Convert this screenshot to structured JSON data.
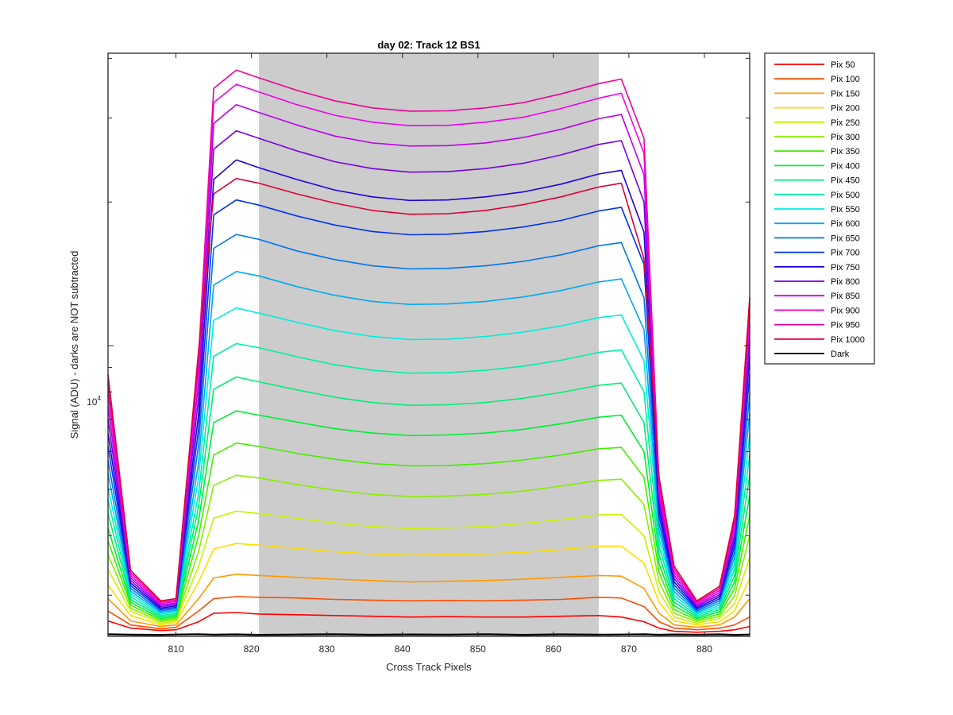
{
  "chart_data": {
    "type": "line",
    "title": "day 02: Track 12  BS1",
    "xlabel": "Cross Track Pixels",
    "ylabel": "Signal (ADU) - darks are NOT subtracted",
    "yscale": "log",
    "xlim": [
      801,
      886
    ],
    "ylim": [
      2460,
      41000
    ],
    "x_ticks": [
      810,
      820,
      830,
      840,
      850,
      860,
      870,
      880
    ],
    "x_tick_labels": [
      "810",
      "820",
      "830",
      "840",
      "850",
      "860",
      "870",
      "880"
    ],
    "y_tick_label": {
      "base": "10",
      "exponent": "4",
      "value": 10000
    },
    "shaded_region": {
      "x_from": 821,
      "x_to": 866,
      "color": "#cccccc"
    },
    "legend_position": "outside-top-right",
    "grid": false,
    "profile_x": [
      801,
      804,
      808,
      810,
      813,
      815,
      818,
      821,
      826,
      831,
      836,
      841,
      846,
      851,
      856,
      861,
      866,
      869,
      872,
      874,
      876,
      879,
      882,
      884,
      886
    ],
    "series": [
      {
        "name": "Pix 50",
        "color": "#ff0000",
        "values": [
          2650,
          2560,
          2530,
          2540,
          2640,
          2750,
          2760,
          2740,
          2730,
          2720,
          2710,
          2700,
          2705,
          2700,
          2700,
          2710,
          2720,
          2700,
          2640,
          2560,
          2520,
          2510,
          2520,
          2540,
          2580
        ]
      },
      {
        "name": "Pix 100",
        "color": "#ff4d00",
        "values": [
          2780,
          2600,
          2550,
          2570,
          2780,
          2950,
          2980,
          2970,
          2960,
          2940,
          2930,
          2920,
          2925,
          2920,
          2930,
          2940,
          2970,
          2960,
          2840,
          2640,
          2560,
          2540,
          2560,
          2600,
          2700
        ]
      },
      {
        "name": "Pix 150",
        "color": "#ff9900",
        "values": [
          2950,
          2650,
          2580,
          2600,
          2950,
          3260,
          3320,
          3300,
          3270,
          3240,
          3220,
          3200,
          3210,
          3220,
          3240,
          3270,
          3300,
          3290,
          3100,
          2750,
          2600,
          2570,
          2600,
          2700,
          2950
        ]
      },
      {
        "name": "Pix 200",
        "color": "#ffdd00",
        "values": [
          3150,
          2720,
          2600,
          2630,
          3200,
          3750,
          3850,
          3820,
          3760,
          3700,
          3660,
          3640,
          3650,
          3660,
          3690,
          3740,
          3800,
          3800,
          3500,
          2900,
          2650,
          2600,
          2640,
          2780,
          3250
        ]
      },
      {
        "name": "Pix 250",
        "color": "#ccf000",
        "values": [
          3400,
          2780,
          2620,
          2650,
          3450,
          4350,
          4500,
          4450,
          4350,
          4250,
          4180,
          4140,
          4150,
          4180,
          4240,
          4320,
          4420,
          4430,
          4000,
          3050,
          2700,
          2620,
          2680,
          2880,
          3600
        ]
      },
      {
        "name": "Pix 300",
        "color": "#88ee00",
        "values": [
          3650,
          2820,
          2640,
          2670,
          3700,
          5100,
          5350,
          5280,
          5120,
          4980,
          4880,
          4830,
          4840,
          4880,
          4960,
          5080,
          5220,
          5250,
          4650,
          3200,
          2750,
          2640,
          2710,
          2990,
          4000
        ]
      },
      {
        "name": "Pix 350",
        "color": "#44ee00",
        "values": [
          3900,
          2860,
          2660,
          2690,
          4000,
          5900,
          6250,
          6150,
          5950,
          5780,
          5660,
          5600,
          5610,
          5660,
          5760,
          5900,
          6080,
          6120,
          5300,
          3350,
          2800,
          2660,
          2740,
          3100,
          4400
        ]
      },
      {
        "name": "Pix 400",
        "color": "#00ee33",
        "values": [
          4150,
          2900,
          2680,
          2710,
          4300,
          6900,
          7300,
          7150,
          6920,
          6700,
          6560,
          6480,
          6500,
          6560,
          6680,
          6860,
          7080,
          7150,
          6000,
          3500,
          2850,
          2680,
          2770,
          3200,
          4850
        ]
      },
      {
        "name": "Pix 450",
        "color": "#00ee77",
        "values": [
          4450,
          2940,
          2700,
          2730,
          4600,
          8100,
          8600,
          8400,
          8080,
          7800,
          7600,
          7500,
          7520,
          7600,
          7760,
          7980,
          8260,
          8350,
          6900,
          3650,
          2900,
          2700,
          2800,
          3300,
          5350
        ]
      },
      {
        "name": "Pix 500",
        "color": "#00eeaa",
        "values": [
          4750,
          2980,
          2720,
          2750,
          4900,
          9500,
          10100,
          9900,
          9480,
          9120,
          8880,
          8760,
          8780,
          8880,
          9060,
          9320,
          9680,
          9800,
          8000,
          3800,
          2950,
          2720,
          2830,
          3400,
          5900
        ]
      },
      {
        "name": "Pix 550",
        "color": "#00eedd",
        "values": [
          5050,
          3020,
          2740,
          2770,
          5300,
          11300,
          12000,
          11700,
          11200,
          10750,
          10450,
          10300,
          10320,
          10450,
          10680,
          11000,
          11450,
          11600,
          9300,
          3950,
          3000,
          2740,
          2860,
          3500,
          6500
        ]
      },
      {
        "name": "Pix 600",
        "color": "#00aaee",
        "values": [
          5400,
          3060,
          2760,
          2790,
          5700,
          13400,
          14300,
          14000,
          13300,
          12750,
          12380,
          12200,
          12230,
          12380,
          12650,
          13050,
          13600,
          13800,
          10800,
          4100,
          3050,
          2760,
          2890,
          3600,
          7200
        ]
      },
      {
        "name": "Pix 650",
        "color": "#0077ee",
        "values": [
          5750,
          3100,
          2780,
          2810,
          6200,
          16000,
          17100,
          16700,
          15800,
          15150,
          14700,
          14480,
          14520,
          14700,
          15020,
          15500,
          16200,
          16450,
          12600,
          4250,
          3100,
          2780,
          2920,
          3700,
          7900
        ]
      },
      {
        "name": "Pix 700",
        "color": "#0033ee",
        "values": [
          6150,
          3140,
          2800,
          2830,
          6700,
          18800,
          20200,
          19700,
          18700,
          17900,
          17350,
          17080,
          17120,
          17350,
          17730,
          18300,
          19150,
          19500,
          14800,
          4400,
          3150,
          2800,
          2950,
          3800,
          8700
        ]
      },
      {
        "name": "Pix 750",
        "color": "#2200dd",
        "values": [
          6550,
          3180,
          2820,
          2850,
          7200,
          22300,
          24500,
          23600,
          22300,
          21200,
          20500,
          20150,
          20200,
          20500,
          21000,
          21800,
          22900,
          23300,
          17300,
          4550,
          3200,
          2820,
          2980,
          3900,
          9500
        ]
      },
      {
        "name": "Pix 800",
        "color": "#7700dd",
        "values": [
          7000,
          3220,
          2840,
          2870,
          7800,
          25800,
          28200,
          27200,
          25600,
          24300,
          23500,
          23100,
          23150,
          23500,
          24100,
          25100,
          26400,
          26900,
          20000,
          4700,
          3250,
          2840,
          3010,
          4000,
          10300
        ]
      },
      {
        "name": "Pix 850",
        "color": "#bb00ee",
        "values": [
          7450,
          3260,
          2860,
          2890,
          8400,
          29200,
          32000,
          30800,
          29000,
          27500,
          26600,
          26200,
          26250,
          26600,
          27300,
          28400,
          29900,
          30500,
          22800,
          4850,
          3300,
          2860,
          3040,
          4100,
          11000
        ]
      },
      {
        "name": "Pix 900",
        "color": "#ee00ee",
        "values": [
          7900,
          3300,
          2880,
          2910,
          9000,
          32300,
          35300,
          34000,
          32000,
          30400,
          29400,
          28900,
          28950,
          29400,
          30100,
          31400,
          33000,
          33800,
          25300,
          5000,
          3350,
          2880,
          3070,
          4200,
          11600
        ]
      },
      {
        "name": "Pix 950",
        "color": "#ee0099",
        "values": [
          8300,
          3340,
          2900,
          2930,
          9500,
          34600,
          37800,
          36400,
          34300,
          32600,
          31500,
          31000,
          31050,
          31500,
          32300,
          33700,
          35400,
          36200,
          27200,
          5150,
          3400,
          2900,
          3100,
          4300,
          12100
        ]
      },
      {
        "name": "Pix 1000",
        "color": "#dd0033",
        "values": [
          8700,
          3380,
          2920,
          2950,
          9800,
          20800,
          22400,
          21900,
          20800,
          19900,
          19200,
          18850,
          18900,
          19200,
          19750,
          20500,
          21500,
          21900,
          15200,
          5300,
          3450,
          2920,
          3130,
          4400,
          12600
        ]
      },
      {
        "name": "Dark",
        "color": "#000000",
        "values": [
          2485,
          2480,
          2478,
          2482,
          2486,
          2480,
          2484,
          2478,
          2482,
          2486,
          2479,
          2483,
          2481,
          2486,
          2478,
          2484,
          2480,
          2482,
          2485,
          2479,
          2483,
          2480,
          2484,
          2478,
          2482
        ]
      }
    ]
  }
}
